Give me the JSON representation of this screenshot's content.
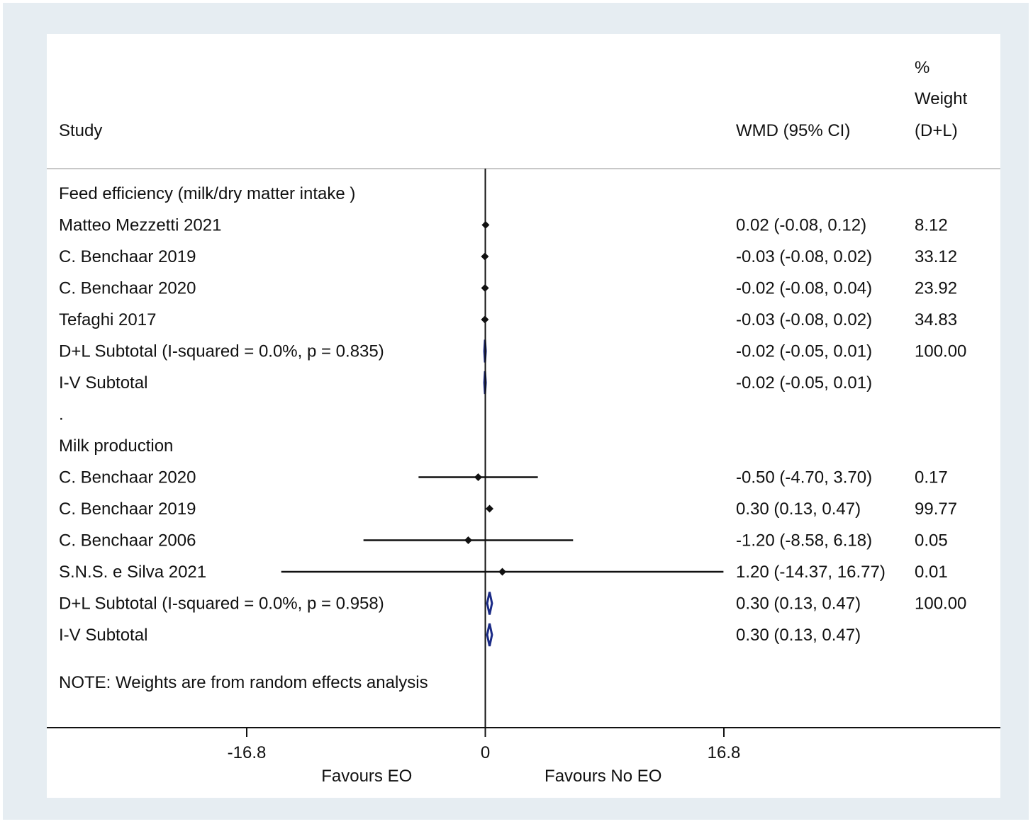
{
  "chart_data": {
    "type": "forest",
    "header": {
      "study": "Study",
      "effect": "WMD (95% CI)",
      "weight_line1": "%",
      "weight_line2": "Weight",
      "weight_line3": "(D+L)"
    },
    "rows": [
      {
        "kind": "group",
        "label": "Feed efficiency (milk/dry matter intake )"
      },
      {
        "kind": "study",
        "label": "Matteo Mezzetti 2021",
        "est": 0.02,
        "lo": -0.08,
        "hi": 0.12,
        "ci": "0.02 (-0.08, 0.12)",
        "weight": "8.12"
      },
      {
        "kind": "study",
        "label": "C. Benchaar 2019",
        "est": -0.03,
        "lo": -0.08,
        "hi": 0.02,
        "ci": "-0.03 (-0.08, 0.02)",
        "weight": "33.12"
      },
      {
        "kind": "study",
        "label": "C. Benchaar 2020",
        "est": -0.02,
        "lo": -0.08,
        "hi": 0.04,
        "ci": "-0.02 (-0.08, 0.04)",
        "weight": "23.92"
      },
      {
        "kind": "study",
        "label": "Tefaghi 2017",
        "est": -0.03,
        "lo": -0.08,
        "hi": 0.02,
        "ci": "-0.03 (-0.08, 0.02)",
        "weight": "34.83"
      },
      {
        "kind": "subtotal",
        "label": "D+L Subtotal  (I-squared = 0.0%, p = 0.835)",
        "est": -0.02,
        "lo": -0.05,
        "hi": 0.01,
        "ci": "-0.02 (-0.05, 0.01)",
        "weight": "100.00"
      },
      {
        "kind": "subtotal",
        "label": "I-V Subtotal",
        "est": -0.02,
        "lo": -0.05,
        "hi": 0.01,
        "ci": "-0.02 (-0.05, 0.01)",
        "weight": ""
      },
      {
        "kind": "spacer",
        "label": "."
      },
      {
        "kind": "group",
        "label": "Milk production"
      },
      {
        "kind": "study",
        "label": "C. Benchaar 2020",
        "est": -0.5,
        "lo": -4.7,
        "hi": 3.7,
        "ci": "-0.50 (-4.70, 3.70)",
        "weight": "0.17"
      },
      {
        "kind": "study",
        "label": "C. Benchaar 2019",
        "est": 0.3,
        "lo": 0.13,
        "hi": 0.47,
        "ci": "0.30 (0.13, 0.47)",
        "weight": "99.77"
      },
      {
        "kind": "study",
        "label": "C. Benchaar 2006",
        "est": -1.2,
        "lo": -8.58,
        "hi": 6.18,
        "ci": "-1.20 (-8.58, 6.18)",
        "weight": "0.05"
      },
      {
        "kind": "study",
        "label": "S.N.S. e Silva 2021",
        "est": 1.2,
        "lo": -14.37,
        "hi": 16.77,
        "ci": "1.20 (-14.37, 16.77)",
        "weight": "0.01"
      },
      {
        "kind": "subtotal",
        "label": "D+L Subtotal  (I-squared = 0.0%, p = 0.958)",
        "est": 0.3,
        "lo": 0.13,
        "hi": 0.47,
        "ci": "0.30 (0.13, 0.47)",
        "weight": "100.00"
      },
      {
        "kind": "subtotal",
        "label": "I-V Subtotal",
        "est": 0.3,
        "lo": 0.13,
        "hi": 0.47,
        "ci": "0.30 (0.13, 0.47)",
        "weight": ""
      },
      {
        "kind": "note",
        "label": "NOTE: Weights are from random effects analysis"
      }
    ],
    "x_axis": {
      "min": -16.8,
      "max": 16.8,
      "ticks": [
        -16.8,
        0,
        16.8
      ],
      "tick_labels": [
        "-16.8",
        "0",
        "16.8"
      ],
      "null_value": 0,
      "left_label": "Favours EO",
      "right_label": "Favours No EO"
    },
    "colors": {
      "frame_background": "#e6edf2",
      "plot_background": "#ffffff",
      "marker": "#111111",
      "subtotal_diamond": "#1a2a86",
      "divider": "#c8c8c8"
    }
  }
}
